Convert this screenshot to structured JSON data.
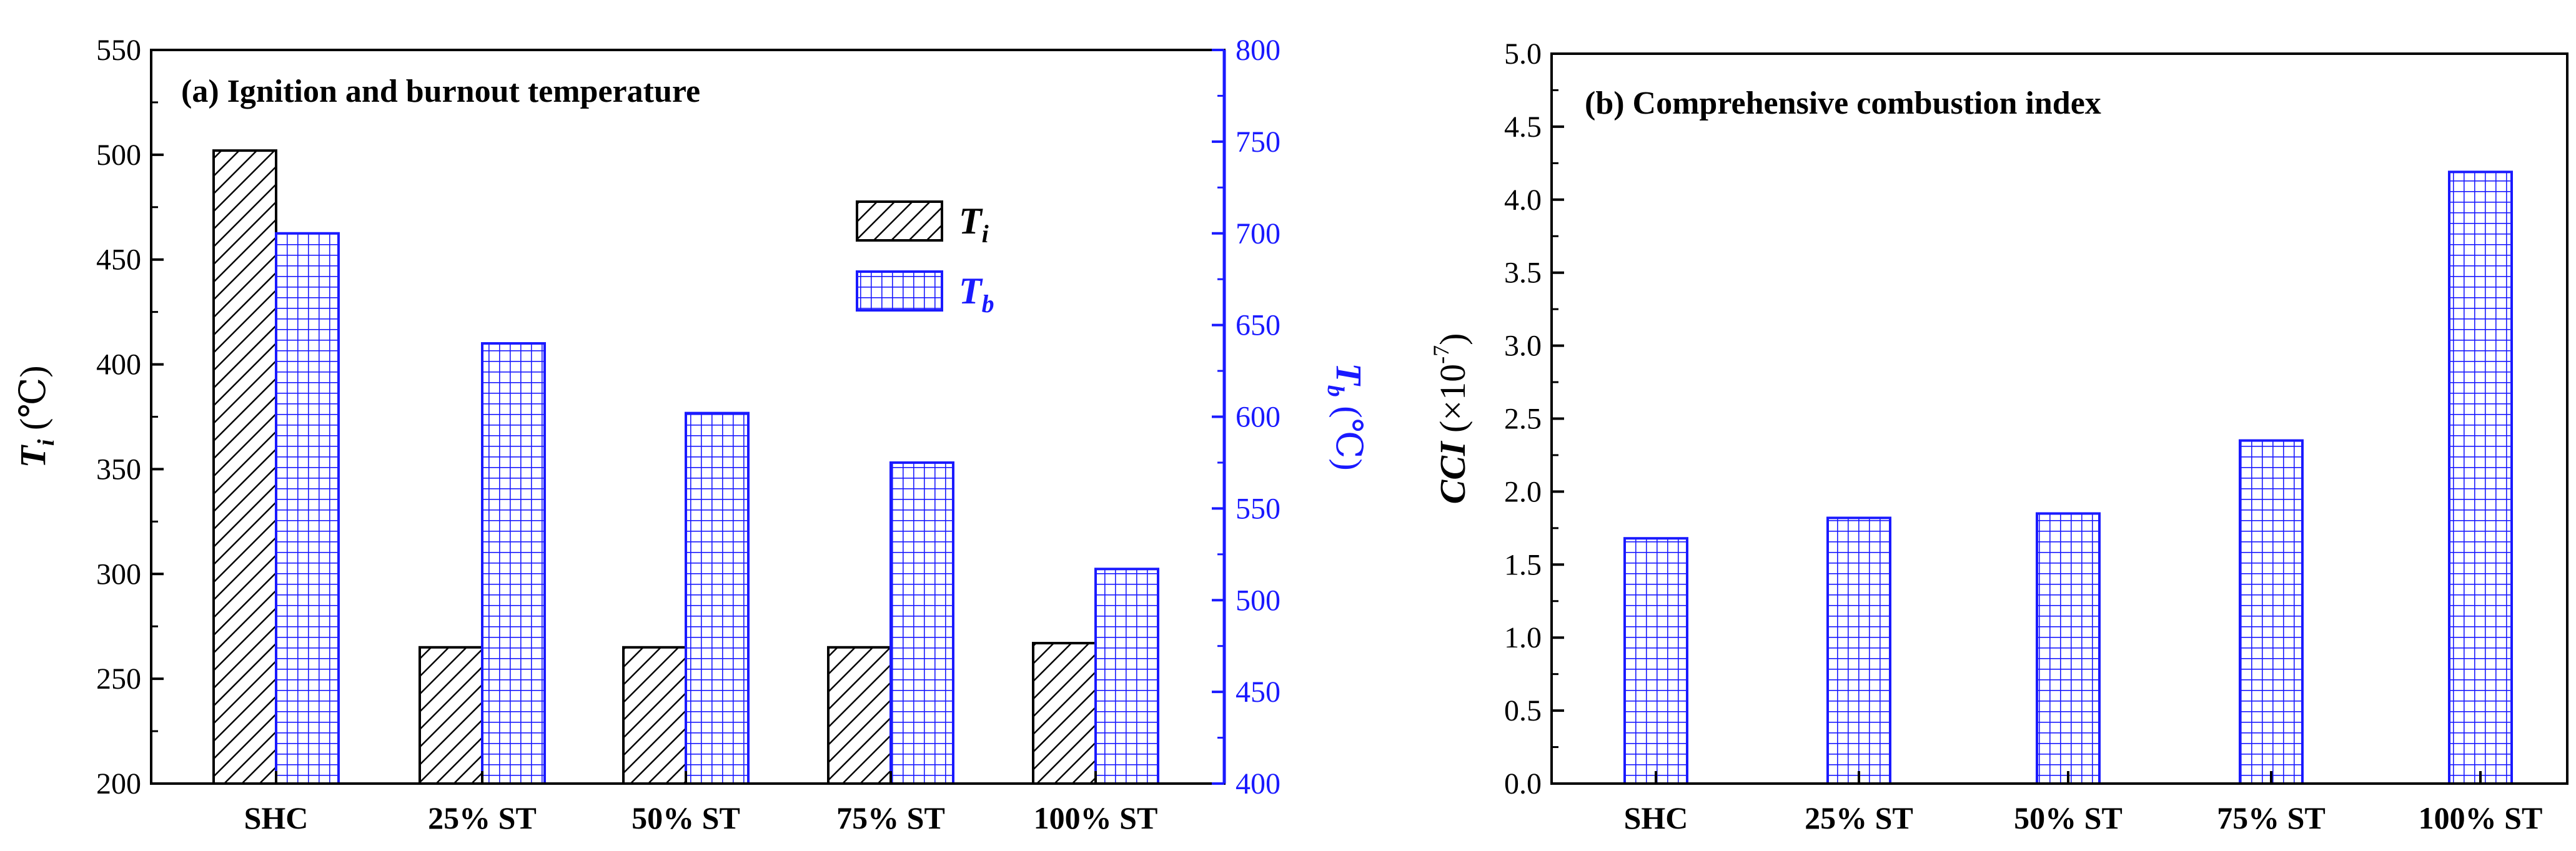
{
  "colors": {
    "black": "#000000",
    "blue": "#1a1aff",
    "hatch_black": "#000000",
    "grid_blue": "#1a1aff"
  },
  "chart_data": [
    {
      "type": "bar",
      "title": "(a) Ignition and burnout temperature",
      "categories": [
        "SHC",
        "25% ST",
        "50% ST",
        "75% ST",
        "100% ST"
      ],
      "y_axis_left": {
        "label_symbol": "T",
        "label_subscript": "i",
        "label_unit": " (℃)",
        "ylim": [
          200,
          550
        ],
        "ticks": [
          "200",
          "250",
          "300",
          "350",
          "400",
          "450",
          "500",
          "550"
        ],
        "color": "#000000"
      },
      "y_axis_right": {
        "label_symbol": "T",
        "label_subscript": "b",
        "label_unit": " (℃)",
        "ylim": [
          400,
          800
        ],
        "ticks": [
          "400",
          "450",
          "500",
          "550",
          "600",
          "650",
          "700",
          "750",
          "800"
        ],
        "color": "#1a1aff"
      },
      "series": [
        {
          "name": "Ti",
          "legend_symbol": "T",
          "legend_subscript": "i",
          "axis": "left",
          "pattern": "diagonal-hatch",
          "color": "#000000",
          "values": [
            502,
            265,
            265,
            265,
            267
          ]
        },
        {
          "name": "Tb",
          "legend_symbol": "T",
          "legend_subscript": "b",
          "axis": "right",
          "pattern": "grid",
          "color": "#1a1aff",
          "values": [
            700,
            640,
            602,
            575,
            517
          ]
        }
      ],
      "legend_position": "upper-right",
      "grid": false
    },
    {
      "type": "bar",
      "title": "(b) Comprehensive combustion index",
      "categories": [
        "SHC",
        "25% ST",
        "50% ST",
        "75% ST",
        "100% ST"
      ],
      "y_axis": {
        "label_main": "CCI",
        "label_unit_prefix": " (×10",
        "label_exponent": "-7",
        "label_unit_suffix": ")",
        "ylim": [
          0.0,
          5.0
        ],
        "ticks": [
          "0.0",
          "0.5",
          "1.0",
          "1.5",
          "2.0",
          "2.5",
          "3.0",
          "3.5",
          "4.0",
          "4.5",
          "5.0"
        ]
      },
      "series": [
        {
          "name": "CCI",
          "pattern": "grid",
          "color": "#1a1aff",
          "values": [
            1.68,
            1.82,
            1.85,
            2.35,
            4.19
          ]
        }
      ],
      "grid": false
    }
  ]
}
